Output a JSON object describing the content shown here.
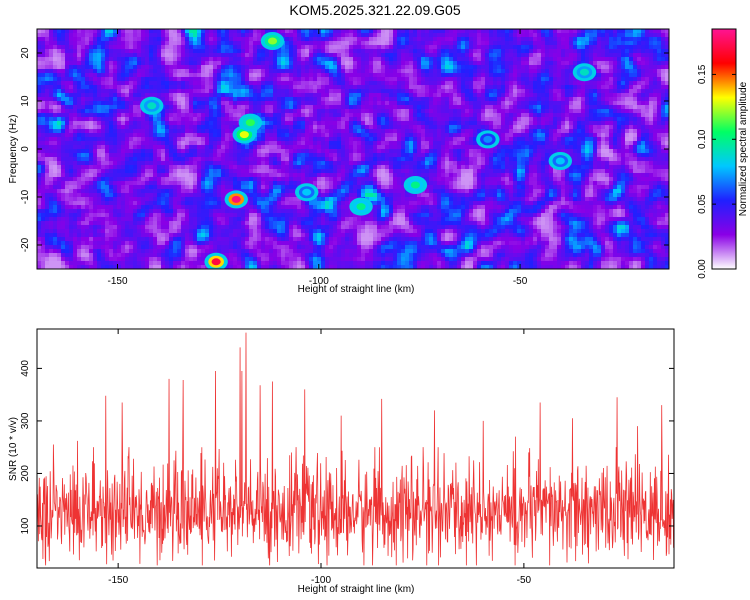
{
  "title": "KOM5.2025.321.22.09.G05",
  "colors": {
    "snr_line": "#ee3333",
    "colorbar": [
      "#ffffff",
      "#8a00e6",
      "#2020ff",
      "#00c8ff",
      "#00ff64",
      "#ffff00",
      "#ff0000",
      "#ff1493"
    ]
  },
  "chart_data": [
    {
      "type": "heatmap",
      "xlabel": "Height of straight line (km)",
      "ylabel": "Frequency (Hz)",
      "xlim": [
        -170,
        -13
      ],
      "ylim": [
        -25,
        25
      ],
      "xticks": [
        -150,
        -100,
        -50
      ],
      "yticks": [
        -20,
        -10,
        0,
        10,
        20
      ],
      "colorbar": {
        "label": "Normalized spectral amplitude",
        "range": [
          0,
          0.185
        ],
        "ticks": [
          "0.00",
          "0.05",
          "0.10",
          "0.15"
        ]
      },
      "grid": false,
      "hotspots": [
        {
          "x": -120.5,
          "y": -10.5,
          "value": 0.18
        },
        {
          "x": -125.5,
          "y": -23.5,
          "value": 0.17
        },
        {
          "x": -118.5,
          "y": 3.0,
          "value": 0.13
        },
        {
          "x": -111.5,
          "y": 22.5,
          "value": 0.12
        },
        {
          "x": -117.0,
          "y": 5.5,
          "value": 0.11
        },
        {
          "x": -89.5,
          "y": -12.0,
          "value": 0.1
        },
        {
          "x": -76.0,
          "y": -7.5,
          "value": 0.1
        },
        {
          "x": -141.5,
          "y": 9.0,
          "value": 0.09
        },
        {
          "x": -34.0,
          "y": 16.0,
          "value": 0.09
        },
        {
          "x": -103.0,
          "y": -9.0,
          "value": 0.08
        },
        {
          "x": -40.0,
          "y": -2.5,
          "value": 0.08
        },
        {
          "x": -58.0,
          "y": 2.0,
          "value": 0.07
        }
      ]
    },
    {
      "type": "line",
      "xlabel": "Height of straight line (km)",
      "ylabel": "SNR (10 * v/v)",
      "xlim": [
        -170,
        -13
      ],
      "ylim": [
        20,
        475
      ],
      "xticks": [
        -150,
        -100,
        -50
      ],
      "yticks": [
        100,
        200,
        300,
        400
      ],
      "grid": false,
      "series": [
        {
          "name": "",
          "baseline_mean": 125,
          "baseline_sd": 45
        }
      ],
      "peaks": [
        {
          "x": -118.5,
          "y": 468
        },
        {
          "x": -120.0,
          "y": 440
        },
        {
          "x": -119.5,
          "y": 395
        },
        {
          "x": -126.0,
          "y": 395
        },
        {
          "x": -137.5,
          "y": 380
        },
        {
          "x": -134.0,
          "y": 378
        },
        {
          "x": -112.0,
          "y": 375
        },
        {
          "x": -115.0,
          "y": 368
        },
        {
          "x": -104.0,
          "y": 360
        },
        {
          "x": -153.0,
          "y": 348
        },
        {
          "x": -149.0,
          "y": 335
        },
        {
          "x": -85.0,
          "y": 342
        },
        {
          "x": -72.0,
          "y": 320
        },
        {
          "x": -46.0,
          "y": 335
        },
        {
          "x": -27.0,
          "y": 345
        },
        {
          "x": -16.0,
          "y": 330
        },
        {
          "x": -95.0,
          "y": 310
        },
        {
          "x": -60.0,
          "y": 300
        },
        {
          "x": -38.0,
          "y": 305
        },
        {
          "x": -160.0,
          "y": 262
        },
        {
          "x": -166.0,
          "y": 255
        },
        {
          "x": -52.0,
          "y": 270
        },
        {
          "x": -22.0,
          "y": 290
        }
      ]
    }
  ]
}
